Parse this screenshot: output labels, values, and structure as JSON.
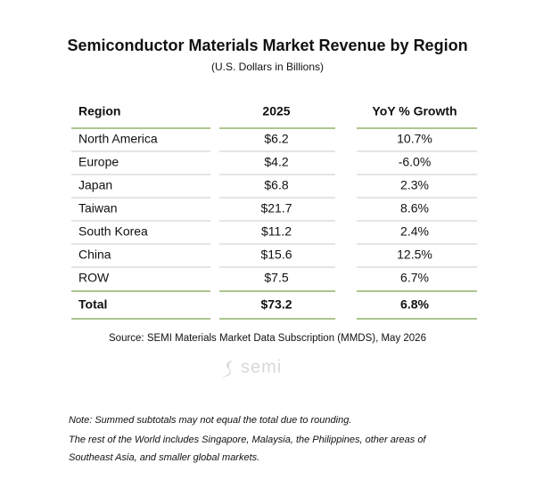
{
  "header": {
    "title": "Semiconductor Materials Market Revenue by Region",
    "subtitle": "(U.S. Dollars in Billions)"
  },
  "table": {
    "columns": [
      "Region",
      "2025",
      "YoY % Growth"
    ],
    "rows": [
      [
        "North America",
        "$6.2",
        "10.7%"
      ],
      [
        "Europe",
        "$4.2",
        "-6.0%"
      ],
      [
        "Japan",
        "$6.8",
        "2.3%"
      ],
      [
        "Taiwan",
        "$21.7",
        "8.6%"
      ],
      [
        "South Korea",
        "$11.2",
        "2.4%"
      ],
      [
        "China",
        "$15.6",
        "12.5%"
      ],
      [
        "ROW",
        "$7.5",
        "6.7%"
      ]
    ],
    "total": [
      "Total",
      "$73.2",
      "6.8%"
    ]
  },
  "source": "Source: SEMI Materials Market Data Subscription (MMDS), May 2026",
  "logo": "semi",
  "notes": [
    "Note: Summed subtotals may not equal the total due to rounding.",
    "The rest of the World includes Singapore, Malaysia, the Philippines, other areas of",
    "Southeast Asia, and smaller global markets."
  ]
}
